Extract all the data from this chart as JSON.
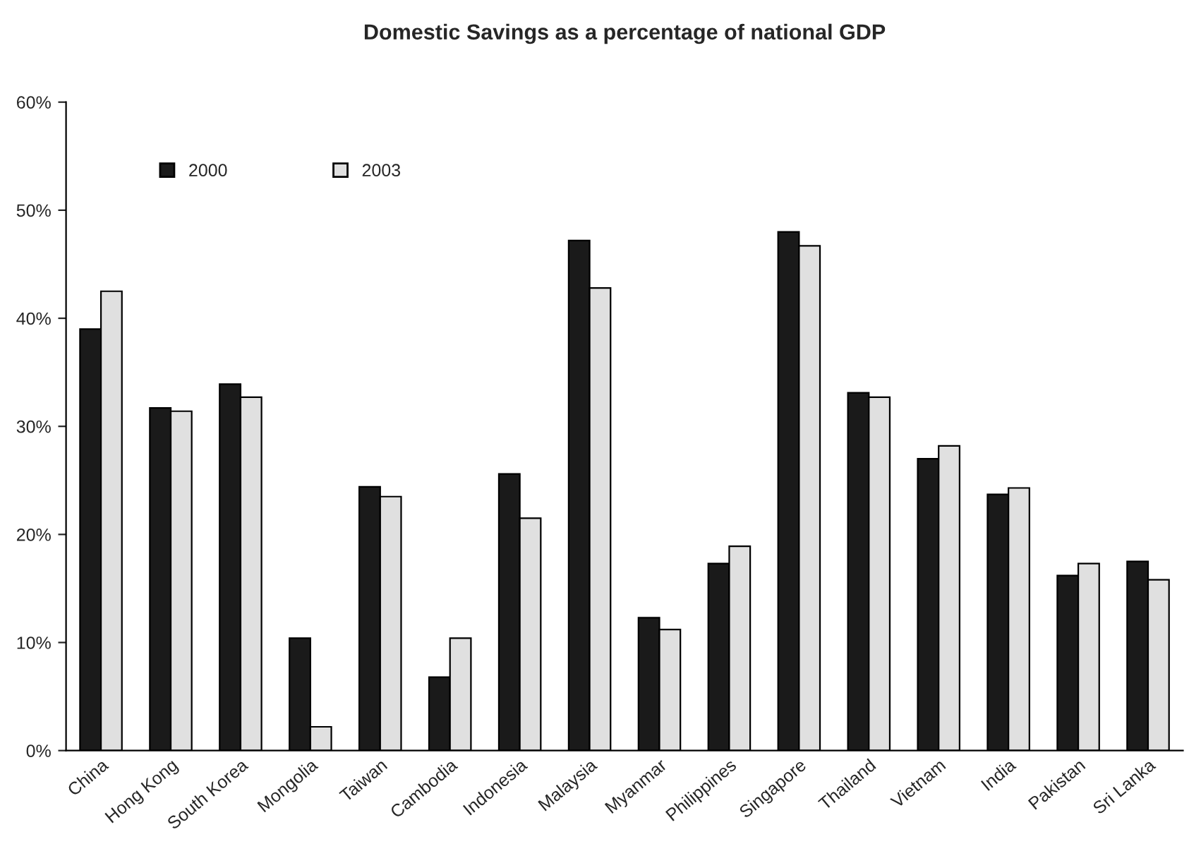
{
  "chart_data": {
    "type": "bar",
    "title": "Domestic Savings as a percentage of national GDP",
    "categories": [
      "China",
      "Hong Kong",
      "South Korea",
      "Mongolia",
      "Taiwan",
      "Cambodia",
      "Indonesia",
      "Malaysia",
      "Myanmar",
      "Philippines",
      "Singapore",
      "Thailand",
      "Vietnam",
      "India",
      "Pakistan",
      "Sri Lanka"
    ],
    "series": [
      {
        "name": "2000",
        "color": "#1a1a1a",
        "values": [
          39.0,
          31.7,
          33.9,
          10.4,
          24.4,
          6.8,
          25.6,
          47.2,
          12.3,
          17.3,
          48.0,
          33.1,
          27.0,
          23.7,
          16.2,
          17.5
        ]
      },
      {
        "name": "2003",
        "color": "#e0e0e0",
        "values": [
          42.5,
          31.4,
          32.7,
          2.2,
          23.5,
          10.4,
          21.5,
          42.8,
          11.2,
          18.9,
          46.7,
          32.7,
          28.2,
          24.3,
          17.3,
          15.8
        ]
      }
    ],
    "ylim": [
      0,
      60
    ],
    "yticks": [
      {
        "value": 0,
        "label": "0%"
      },
      {
        "value": 10,
        "label": "10%"
      },
      {
        "value": 20,
        "label": "20%"
      },
      {
        "value": 30,
        "label": "30%"
      },
      {
        "value": 40,
        "label": "40%"
      },
      {
        "value": 50,
        "label": "50%"
      },
      {
        "value": 60,
        "label": "60%"
      }
    ],
    "legend": "top left",
    "grid": false
  }
}
